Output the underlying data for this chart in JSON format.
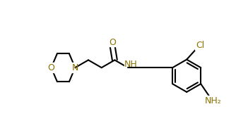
{
  "bg_color": "#ffffff",
  "line_color": "#000000",
  "atom_color": "#8B7000",
  "bond_width": 1.5,
  "figsize": [
    3.51,
    1.92
  ],
  "dpi": 100,
  "xlim": [
    0,
    3.51
  ],
  "ylim": [
    0,
    1.92
  ]
}
